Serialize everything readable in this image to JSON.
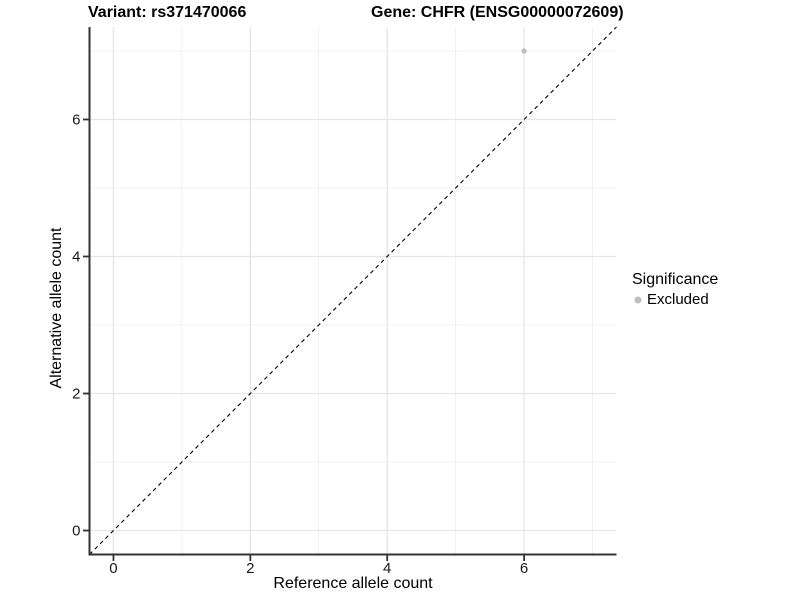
{
  "chart_data": {
    "type": "scatter",
    "titles": [
      "Variant: rs371470066",
      "Gene: CHFR (ENSG00000072609)"
    ],
    "xlabel": "Reference allele count",
    "ylabel": "Alternative allele count",
    "xlim": [
      -0.35,
      7.35
    ],
    "ylim": [
      -0.35,
      7.35
    ],
    "x_ticks": [
      0,
      2,
      4,
      6
    ],
    "y_ticks": [
      0,
      2,
      4,
      6
    ],
    "x_minor_ticks": [
      1,
      3,
      5,
      7
    ],
    "y_minor_ticks": [
      1,
      3,
      5,
      7
    ],
    "grid": "major+minor",
    "legend": {
      "title": "Significance",
      "position": "right",
      "items": [
        {
          "label": "Excluded",
          "color": "#bebebe"
        }
      ]
    },
    "series": [
      {
        "name": "Excluded",
        "color": "#bebebe",
        "points": [
          {
            "x": 6,
            "y": 7
          }
        ]
      }
    ],
    "reference_line": {
      "kind": "identity",
      "equation": "y = x",
      "style": "dashed",
      "color": "#000000"
    },
    "colors": {
      "grid_minor": "#ededed",
      "grid_major": "#e6e6e6",
      "axis": "#333333",
      "tick_label": "#1a1a1a",
      "point": "#bebebe"
    }
  }
}
